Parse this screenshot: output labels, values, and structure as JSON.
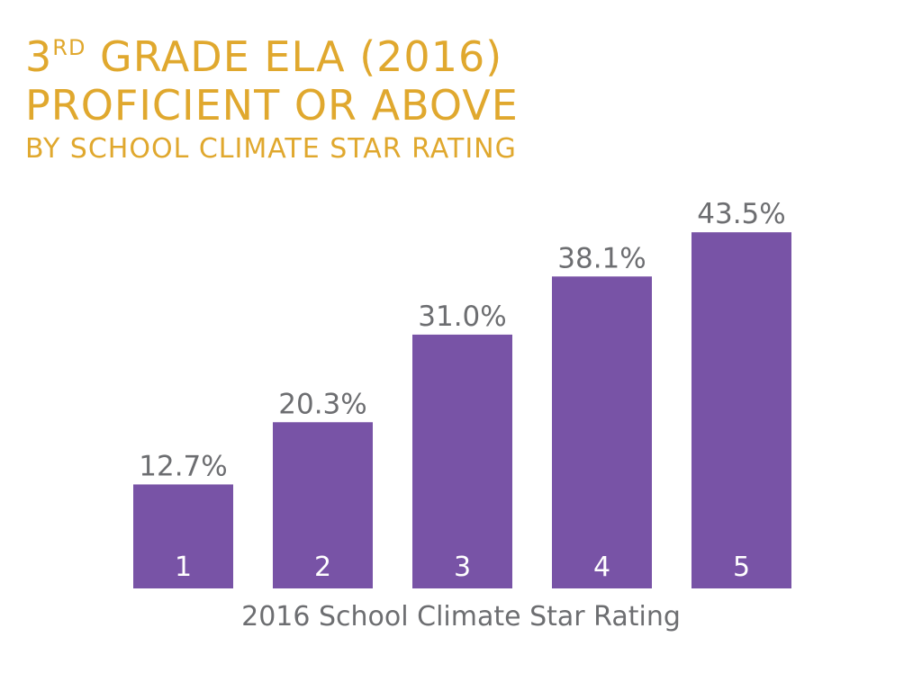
{
  "title": {
    "line1_main": "3",
    "line1_sup": "RD",
    "line1_rest": " GRADE ELA (2016)",
    "line2": "PROFICIENT OR ABOVE",
    "line3": "BY SCHOOL CLIMATE STAR RATING"
  },
  "colors": {
    "title": "#e0a82e",
    "bar": "#7853a6",
    "value_label": "#6d6e71",
    "category_label": "#ffffff"
  },
  "chart_data": {
    "type": "bar",
    "categories": [
      "1",
      "2",
      "3",
      "4",
      "5"
    ],
    "values": [
      12.7,
      20.3,
      31.0,
      38.1,
      43.5
    ],
    "value_labels": [
      "12.7%",
      "20.3%",
      "31.0%",
      "38.1%",
      "43.5%"
    ],
    "title": "3RD GRADE ELA (2016) PROFICIENT OR ABOVE BY SCHOOL CLIMATE STAR RATING",
    "xlabel": "2016 School Climate Star Rating",
    "ylabel": "",
    "ylim": [
      0,
      50
    ],
    "grid": false
  }
}
